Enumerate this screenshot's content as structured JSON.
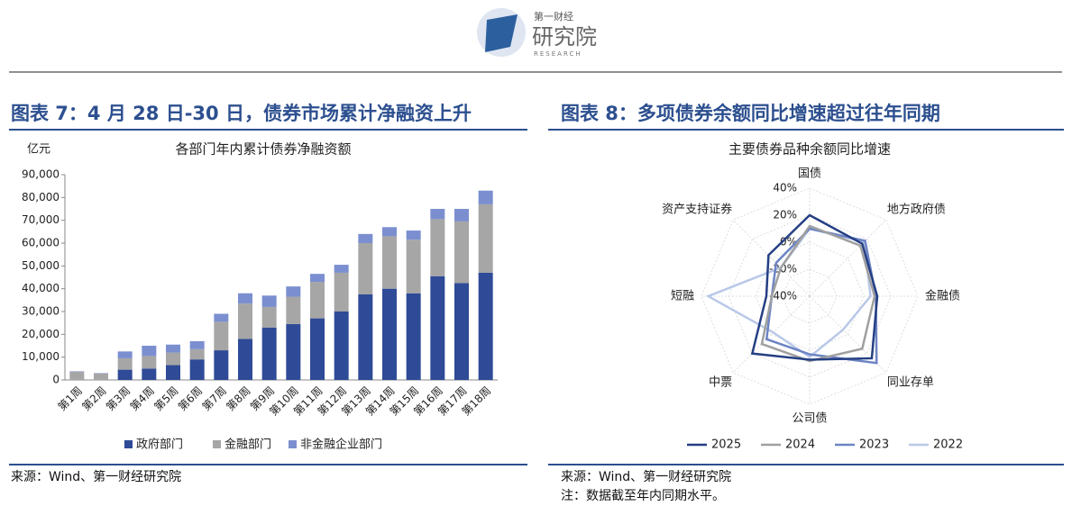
{
  "header": {
    "logo_top": "第一财经",
    "logo_main": "研究院",
    "logo_sub": "RESEARCH"
  },
  "panels": [
    {
      "heading": "图表 7：4 月 28 日-30 日，债券市场累计净融资上升",
      "notes": [
        "来源：Wind、第一财经研究院"
      ]
    },
    {
      "heading": "图表 8：多项债券余额同比增速超过往年同期",
      "notes": [
        "来源：Wind、第一财经研究院",
        "注：数据截至年内同期水平。"
      ]
    }
  ],
  "chart_data": [
    {
      "type": "bar",
      "stacked": true,
      "title": "各部门年内累计债券净融资额",
      "y_label": "亿元",
      "categories": [
        "第1周",
        "第2周",
        "第3周",
        "第4周",
        "第5周",
        "第6周",
        "第7周",
        "第8周",
        "第9周",
        "第10周",
        "第11周",
        "第12周",
        "第13周",
        "第14周",
        "第15周",
        "第16周",
        "第17周",
        "第18周"
      ],
      "series": [
        {
          "name": "政府部门",
          "color": "#2f4a96",
          "values": [
            0,
            0,
            4500,
            5000,
            6500,
            9000,
            13000,
            18000,
            23000,
            24500,
            27000,
            30000,
            37500,
            40000,
            38000,
            45500,
            42500,
            47000
          ]
        },
        {
          "name": "金融部门",
          "color": "#a6a6a6",
          "values": [
            3600,
            2800,
            5000,
            5500,
            5500,
            4500,
            12500,
            15500,
            9000,
            12000,
            16000,
            17000,
            22500,
            23000,
            23500,
            25000,
            27000,
            30000
          ]
        },
        {
          "name": "非金融企业部门",
          "color": "#7b8fd0",
          "values": [
            200,
            200,
            3000,
            4500,
            3500,
            3500,
            3500,
            4500,
            5000,
            4500,
            3500,
            3500,
            4000,
            4000,
            4000,
            4500,
            5500,
            6000
          ]
        }
      ],
      "ylim": [
        0,
        90000
      ],
      "yticks": [
        {
          "value": 0,
          "label": "0"
        },
        {
          "value": 10000,
          "label": "10,000"
        },
        {
          "value": 20000,
          "label": "20,000"
        },
        {
          "value": 30000,
          "label": "30,000"
        },
        {
          "value": 40000,
          "label": "40,000"
        },
        {
          "value": 50000,
          "label": "50,000"
        },
        {
          "value": 60000,
          "label": "60,000"
        },
        {
          "value": 70000,
          "label": "70,000"
        },
        {
          "value": 80000,
          "label": "80,000"
        },
        {
          "value": 90000,
          "label": "90,000"
        }
      ],
      "legend": "bottom"
    },
    {
      "type": "radar",
      "title": "主要债券品种余额同比增速",
      "categories": [
        "国债",
        "地方政府债",
        "金融债",
        "同业存单",
        "公司债",
        "中票",
        "短融",
        "资产支持证券"
      ],
      "series": [
        {
          "name": "2025",
          "color": "#253f84",
          "values": [
            20,
            15,
            10,
            25,
            7,
            20,
            -8,
            3
          ]
        },
        {
          "name": "2024",
          "color": "#a0a0a0",
          "values": [
            12,
            13,
            8,
            15,
            8,
            10,
            -12,
            -10
          ]
        },
        {
          "name": "2023",
          "color": "#6d84c4",
          "values": [
            10,
            18,
            9,
            30,
            3,
            5,
            -12,
            -5
          ]
        },
        {
          "name": "2022",
          "color": "#b9c8e8",
          "values": [
            10,
            17,
            5,
            -5,
            5,
            -2,
            35,
            -10
          ]
        }
      ],
      "rlim": [
        -40,
        40
      ],
      "rticks": [
        {
          "value": 40,
          "label": "40%"
        },
        {
          "value": 20,
          "label": "20%"
        },
        {
          "value": 0,
          "label": "0%"
        },
        {
          "value": -20,
          "label": "-20%"
        },
        {
          "value": -40,
          "label": "-40%"
        }
      ],
      "legend": "bottom"
    }
  ]
}
